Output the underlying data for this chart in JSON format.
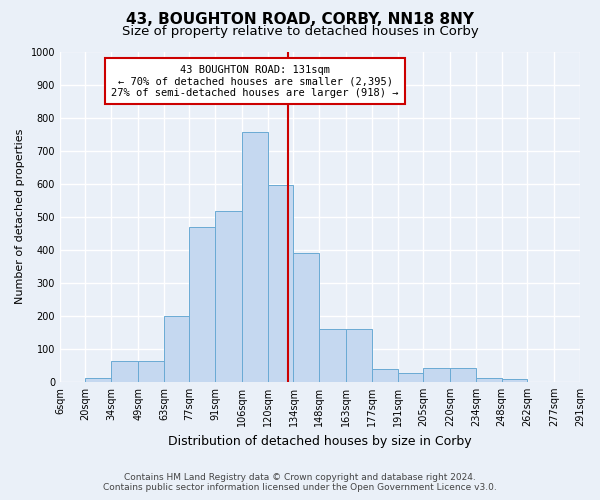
{
  "title": "43, BOUGHTON ROAD, CORBY, NN18 8NY",
  "subtitle": "Size of property relative to detached houses in Corby",
  "xlabel": "Distribution of detached houses by size in Corby",
  "ylabel": "Number of detached properties",
  "annotation_line1": "43 BOUGHTON ROAD: 131sqm",
  "annotation_line2": "← 70% of detached houses are smaller (2,395)",
  "annotation_line3": "27% of semi-detached houses are larger (918) →",
  "footer_line1": "Contains HM Land Registry data © Crown copyright and database right 2024.",
  "footer_line2": "Contains public sector information licensed under the Open Government Licence v3.0.",
  "bar_labels": [
    "6sqm",
    "20sqm",
    "34sqm",
    "49sqm",
    "63sqm",
    "77sqm",
    "91sqm",
    "106sqm",
    "120sqm",
    "134sqm",
    "148sqm",
    "163sqm",
    "177sqm",
    "191sqm",
    "205sqm",
    "220sqm",
    "234sqm",
    "248sqm",
    "262sqm",
    "277sqm",
    "291sqm"
  ],
  "bar_heights": [
    0,
    13,
    63,
    63,
    198,
    470,
    518,
    757,
    597,
    390,
    160,
    160,
    40,
    27,
    43,
    43,
    13,
    7,
    0,
    0
  ],
  "bin_edges": [
    6,
    20,
    34,
    49,
    63,
    77,
    91,
    106,
    120,
    134,
    148,
    163,
    177,
    191,
    205,
    220,
    234,
    248,
    262,
    277,
    291
  ],
  "reference_line_x": 131,
  "ylim": [
    0,
    1000
  ],
  "yticks": [
    0,
    100,
    200,
    300,
    400,
    500,
    600,
    700,
    800,
    900,
    1000
  ],
  "bar_facecolor": "#c5d8f0",
  "bar_edgecolor": "#6aaad4",
  "ref_line_color": "#cc0000",
  "annotation_box_edgecolor": "#cc0000",
  "annotation_box_facecolor": "#ffffff",
  "background_color": "#eaf0f8",
  "grid_color": "#ffffff",
  "title_fontsize": 11,
  "subtitle_fontsize": 9.5,
  "axis_label_fontsize": 8,
  "tick_fontsize": 7,
  "annotation_fontsize": 7.5,
  "footer_fontsize": 6.5
}
